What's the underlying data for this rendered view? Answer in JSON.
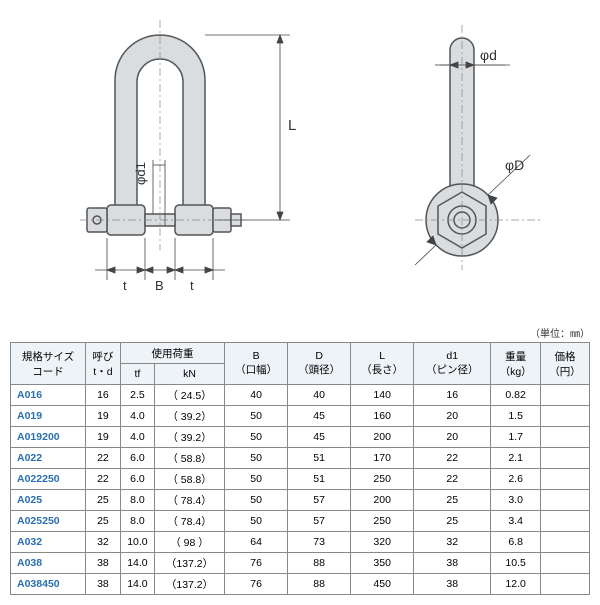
{
  "unit_note": "（単位：㎜）",
  "diagram_labels": {
    "L": "L",
    "phi_d1": "φd1",
    "t1": "t",
    "B": "B",
    "t2": "t",
    "phi_d": "φd",
    "phi_D": "φD"
  },
  "diagram_style": {
    "fill": "#d9dde0",
    "stroke": "#555",
    "dim_color": "#444",
    "centerline": "#888"
  },
  "table": {
    "headers_row1": [
      "規格サイズ\nコード",
      "呼び\nt・d",
      "使用荷重",
      "B\n（口幅）",
      "D\n（頭径）",
      "L\n（長さ）",
      "d1\n（ピン径）",
      "重量\n（kg）",
      "価格\n（円）"
    ],
    "headers_row2_load": [
      "tf",
      "kN"
    ],
    "rows": [
      {
        "code": "A016",
        "td": "16",
        "tf": "2.5",
        "kn": "（ 24.5）",
        "b": "40",
        "d": "40",
        "l": "140",
        "d1": "16",
        "wt": "0.82",
        "price": ""
      },
      {
        "code": "A019",
        "td": "19",
        "tf": "4.0",
        "kn": "（ 39.2）",
        "b": "50",
        "d": "45",
        "l": "160",
        "d1": "20",
        "wt": "1.5",
        "price": ""
      },
      {
        "code": "A019200",
        "td": "19",
        "tf": "4.0",
        "kn": "（ 39.2）",
        "b": "50",
        "d": "45",
        "l": "200",
        "d1": "20",
        "wt": "1.7",
        "price": ""
      },
      {
        "code": "A022",
        "td": "22",
        "tf": "6.0",
        "kn": "（ 58.8）",
        "b": "50",
        "d": "51",
        "l": "170",
        "d1": "22",
        "wt": "2.1",
        "price": ""
      },
      {
        "code": "A022250",
        "td": "22",
        "tf": "6.0",
        "kn": "（ 58.8）",
        "b": "50",
        "d": "51",
        "l": "250",
        "d1": "22",
        "wt": "2.6",
        "price": ""
      },
      {
        "code": "A025",
        "td": "25",
        "tf": "8.0",
        "kn": "（ 78.4）",
        "b": "50",
        "d": "57",
        "l": "200",
        "d1": "25",
        "wt": "3.0",
        "price": ""
      },
      {
        "code": "A025250",
        "td": "25",
        "tf": "8.0",
        "kn": "（ 78.4）",
        "b": "50",
        "d": "57",
        "l": "250",
        "d1": "25",
        "wt": "3.4",
        "price": ""
      },
      {
        "code": "A032",
        "td": "32",
        "tf": "10.0",
        "kn": "（ 98  ）",
        "b": "64",
        "d": "73",
        "l": "320",
        "d1": "32",
        "wt": "6.8",
        "price": ""
      },
      {
        "code": "A038",
        "td": "38",
        "tf": "14.0",
        "kn": "（137.2）",
        "b": "76",
        "d": "88",
        "l": "350",
        "d1": "38",
        "wt": "10.5",
        "price": ""
      },
      {
        "code": "A038450",
        "td": "38",
        "tf": "14.0",
        "kn": "（137.2）",
        "b": "76",
        "d": "88",
        "l": "450",
        "d1": "38",
        "wt": "12.0",
        "price": ""
      }
    ]
  }
}
